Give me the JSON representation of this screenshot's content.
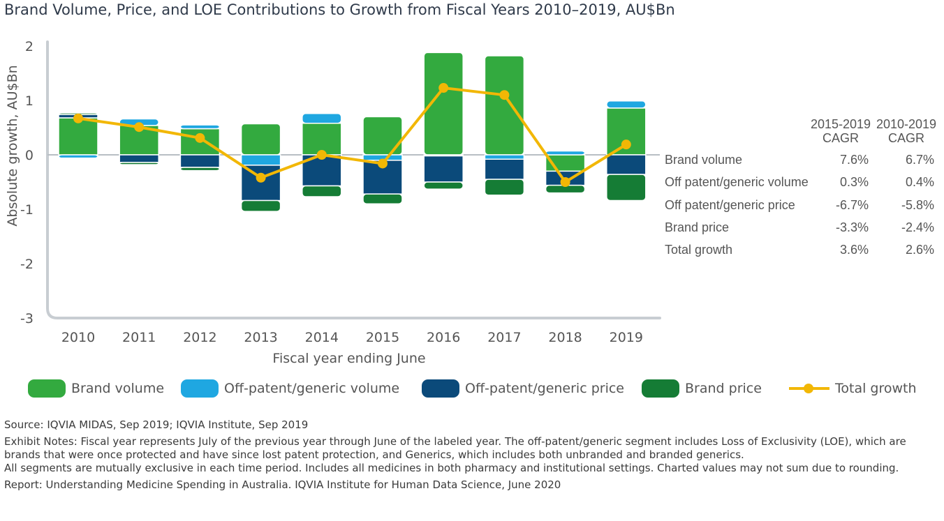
{
  "title": "Brand Volume, Price, and LOE Contributions to Growth from Fiscal Years 2010–2019, AU$Bn",
  "colors": {
    "brand_volume": "#33aa3f",
    "offpatent_volume": "#1fa7e1",
    "offpatent_price": "#0b4a7a",
    "brand_price": "#157c35",
    "total_growth": "#f2b705",
    "axis": "#c8cdd2"
  },
  "chart_data": {
    "type": "bar",
    "stacked": true,
    "xlabel": "Fiscal year ending June",
    "ylabel": "Absolute growth, AU$Bn",
    "ylim": [
      -3,
      2
    ],
    "yticks": [
      "2",
      "1",
      "0",
      "-1",
      "-2",
      "-3"
    ],
    "categories": [
      "2010",
      "2011",
      "2012",
      "2013",
      "2014",
      "2015",
      "2016",
      "2017",
      "2018",
      "2019"
    ],
    "series": [
      {
        "name": "Brand volume",
        "values": [
          0.68,
          0.54,
          0.48,
          0.57,
          0.58,
          0.7,
          1.88,
          1.82,
          -0.3,
          0.86
        ]
      },
      {
        "name": "Off-patent/generic volume",
        "values": [
          -0.06,
          0.12,
          0.07,
          -0.19,
          0.18,
          -0.1,
          -0.02,
          -0.08,
          0.07,
          0.13
        ]
      },
      {
        "name": "Off-patent/generic price",
        "values": [
          0.06,
          -0.14,
          -0.23,
          -0.65,
          -0.57,
          -0.62,
          -0.48,
          -0.37,
          -0.26,
          -0.36
        ]
      },
      {
        "name": "Brand price",
        "values": [
          0.03,
          -0.04,
          -0.06,
          -0.2,
          -0.2,
          -0.18,
          -0.13,
          -0.29,
          -0.14,
          -0.48
        ]
      }
    ],
    "line": {
      "name": "Total growth",
      "values": [
        0.67,
        0.51,
        0.31,
        -0.42,
        0.0,
        -0.16,
        1.23,
        1.1,
        -0.5,
        0.19
      ]
    },
    "legend_position": "bottom"
  },
  "cagr_table": {
    "headers": [
      {
        "line1": "2015-2019",
        "line2": "CAGR"
      },
      {
        "line1": "2010-2019",
        "line2": "CAGR"
      }
    ],
    "rows": [
      {
        "label": "Brand volume",
        "v1": "7.6%",
        "v2": "6.7%"
      },
      {
        "label": "Off patent/generic volume",
        "v1": "0.3%",
        "v2": "0.4%"
      },
      {
        "label": "Off patent/generic price",
        "v1": "-6.7%",
        "v2": "-5.8%"
      },
      {
        "label": "Brand price",
        "v1": "-3.3%",
        "v2": "-2.4%"
      },
      {
        "label": "Total growth",
        "v1": "3.6%",
        "v2": "2.6%"
      }
    ]
  },
  "legend": {
    "items": [
      "Brand volume",
      "Off-patent/generic volume",
      "Off-patent/generic price",
      "Brand price",
      "Total growth"
    ]
  },
  "notes": {
    "source": "Source: IQVIA MIDAS, Sep 2019; IQVIA Institute, Sep 2019",
    "exhibit": "Exhibit Notes: Fiscal year represents July of the previous year through June of the labeled year. The off-patent/generic segment includes Loss of Exclusivity (LOE), which are brands that were once protected and have since lost patent protection, and Generics, which includes both unbranded and branded generics.",
    "segments": "All segments are mutually exclusive in each time period. Includes all medicines in both pharmacy and institutional settings. Charted values may not sum due to rounding.",
    "report": "Report: Understanding Medicine Spending in Australia. IQVIA Institute for Human Data Science, June 2020"
  }
}
